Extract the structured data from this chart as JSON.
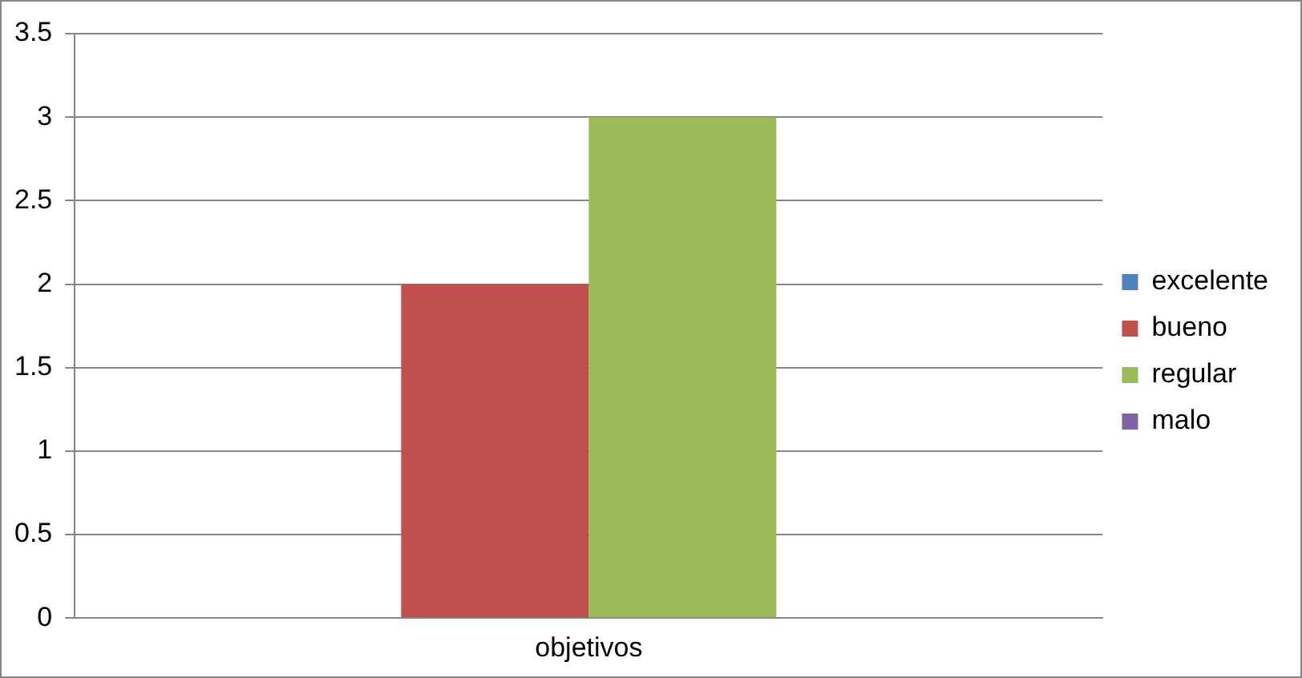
{
  "chart_data": {
    "type": "bar",
    "categories": [
      "objetivos"
    ],
    "series": [
      {
        "name": "excelente",
        "color": "#4f81bd",
        "values": [
          0
        ]
      },
      {
        "name": "bueno",
        "color": "#c0504d",
        "values": [
          2
        ]
      },
      {
        "name": "regular",
        "color": "#9bbb59",
        "values": [
          3
        ]
      },
      {
        "name": "malo",
        "color": "#8064a2",
        "values": [
          0
        ]
      }
    ],
    "ylim": [
      0,
      3.5
    ],
    "yticks": [
      0,
      0.5,
      1,
      1.5,
      2,
      2.5,
      3,
      3.5
    ],
    "grid": "y",
    "legend": "right"
  }
}
